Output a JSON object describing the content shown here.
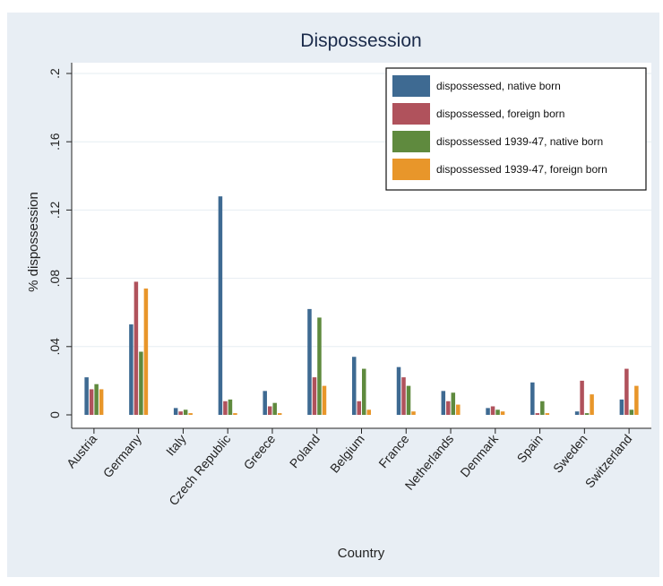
{
  "chart_data": {
    "type": "bar",
    "title": "Dispossession",
    "xlabel": "Country",
    "ylabel": "% dispossession",
    "ylim": [
      0,
      0.2
    ],
    "yticks": [
      0,
      0.04,
      0.08,
      0.12,
      0.16,
      0.2
    ],
    "ytick_labels": [
      "0",
      ".04",
      ".08",
      ".12",
      ".16",
      ".2"
    ],
    "grid": true,
    "legend_position": "top-right",
    "categories": [
      "Austria",
      "Germany",
      "Italy",
      "Czech Republic",
      "Greece",
      "Poland",
      "Belgium",
      "France",
      "Netherlands",
      "Denmark",
      "Spain",
      "Sweden",
      "Switzerland"
    ],
    "series": [
      {
        "name": "dispossessed, native born",
        "color": "#3e6a92",
        "values": [
          0.022,
          0.053,
          0.004,
          0.128,
          0.014,
          0.062,
          0.034,
          0.028,
          0.014,
          0.004,
          0.019,
          0.002,
          0.009
        ]
      },
      {
        "name": "dispossessed, foreign born",
        "color": "#b0525c",
        "values": [
          0.015,
          0.078,
          0.002,
          0.008,
          0.005,
          0.022,
          0.008,
          0.022,
          0.008,
          0.005,
          0.001,
          0.02,
          0.027
        ]
      },
      {
        "name": "dispossessed 1939-47, native born",
        "color": "#5f8a3e",
        "values": [
          0.018,
          0.037,
          0.003,
          0.009,
          0.007,
          0.057,
          0.027,
          0.017,
          0.013,
          0.003,
          0.008,
          0.001,
          0.003
        ]
      },
      {
        "name": "dispossessed 1939-47, foreign born",
        "color": "#e8962a",
        "values": [
          0.015,
          0.074,
          0.001,
          0.001,
          0.001,
          0.017,
          0.003,
          0.002,
          0.006,
          0.002,
          0.001,
          0.012,
          0.017
        ]
      }
    ]
  }
}
